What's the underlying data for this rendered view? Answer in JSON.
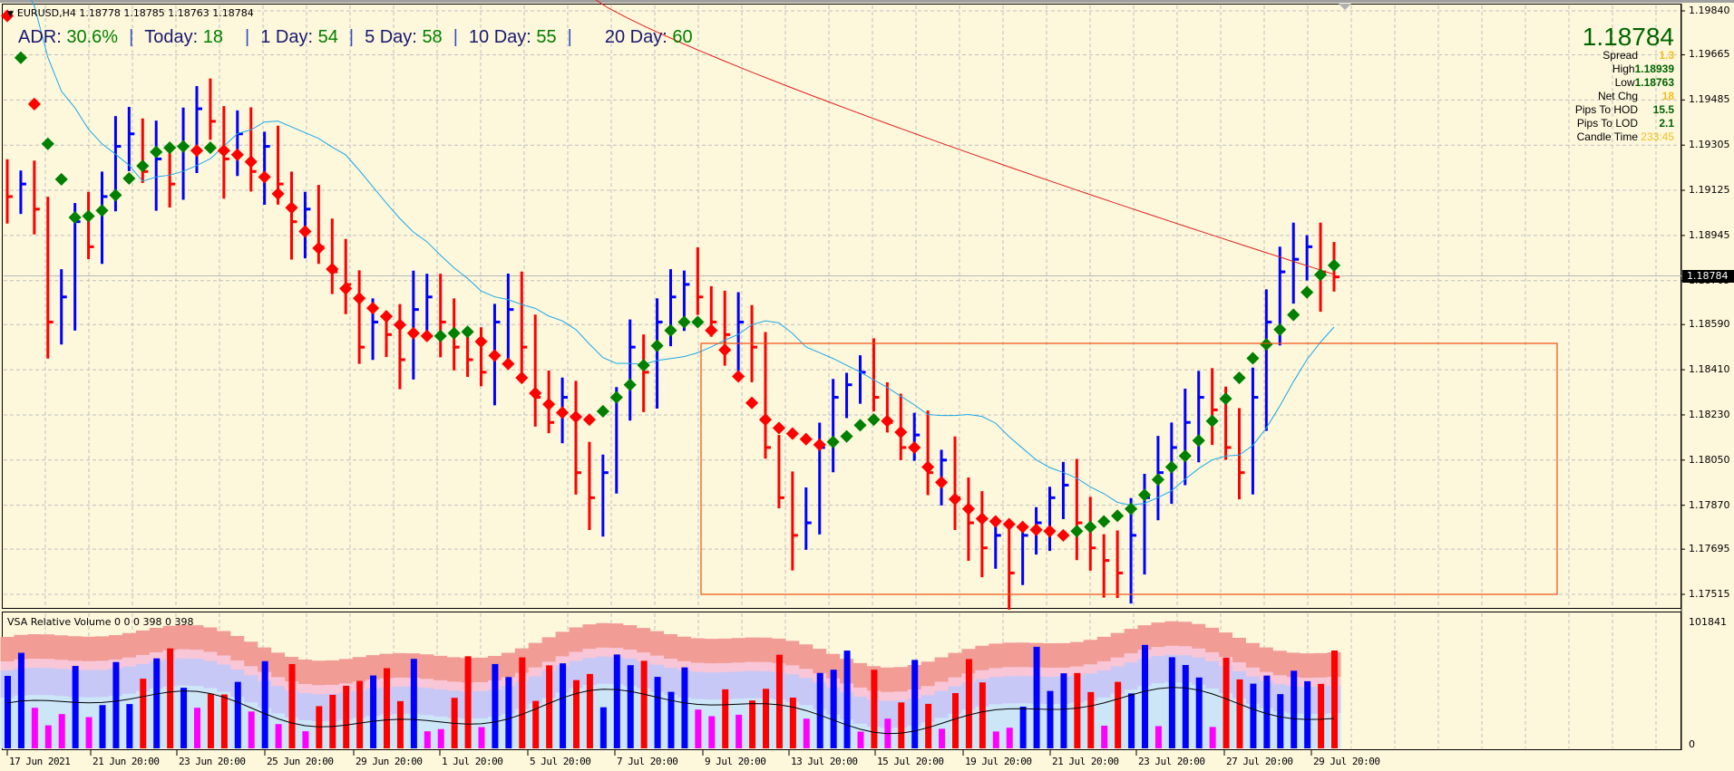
{
  "header": {
    "symbol_line": "EURUSD,H4  1.18778 1.18785 1.18763 1.18784"
  },
  "adr": {
    "adr_label": "ADR:",
    "adr_value": "30.6%",
    "today_label": "Today:",
    "today_value": "18",
    "day1_label": "1 Day:",
    "day1_value": "54",
    "day5_label": "5 Day:",
    "day5_value": "58",
    "day10_label": "10 Day:",
    "day10_value": "55",
    "day20_label": "20 Day:",
    "day20_value": "60",
    "separator": "|"
  },
  "info_panel": {
    "price": "1.18784",
    "spread_label": "Spread",
    "spread_value": "1.3",
    "high_label": "High",
    "high_value": "1.18939",
    "low_label": "Low",
    "low_value": "1.18763",
    "netchg_label": "Net Chg",
    "netchg_value": "18",
    "pips_hod_label": "Pips To HOD",
    "pips_hod_value": "15.5",
    "pips_lod_label": "Pips To LOD",
    "pips_lod_value": "2.1",
    "candle_time_label": "Candle Time",
    "candle_time_value": "233:45"
  },
  "price_axis": {
    "ticks": [
      "1.19840",
      "1.19665",
      "1.19485",
      "1.19305",
      "1.19125",
      "1.18945",
      "1.18765",
      "1.18590",
      "1.18410",
      "1.18230",
      "1.18050",
      "1.17870",
      "1.17695",
      "1.17515"
    ],
    "current_price": "1.18784"
  },
  "volume_pane": {
    "title": "VSA Relative Volume 0 0 0 398 0 398",
    "max_label": "101841",
    "min_label": "0"
  },
  "time_axis": {
    "labels": [
      "17 Jun 2021",
      "21 Jun 20:00",
      "23 Jun 20:00",
      "25 Jun 20:00",
      "29 Jun 20:00",
      "1 Jul 20:00",
      "5 Jul 20:00",
      "7 Jul 20:00",
      "9 Jul 20:00",
      "13 Jul 20:00",
      "15 Jul 20:00",
      "19 Jul 20:00",
      "21 Jul 20:00",
      "23 Jul 20:00",
      "27 Jul 20:00",
      "29 Jul 20:00"
    ]
  },
  "colors": {
    "background": "#fdf7dc",
    "bull_bar": "#0000ff",
    "bear_bar": "#ff0000",
    "trend_up": "#008000",
    "trend_down": "#ff0000",
    "ma_fast": "#1ca8e8",
    "ma_slow": "#e02020",
    "box": "#f05010",
    "grid": "#c0c0c0"
  },
  "chart_data": {
    "type": "ohlc",
    "title": "EURUSD,H4",
    "symbol": "EURUSD",
    "timeframe": "H4",
    "last_ohlc": {
      "open": 1.18778,
      "high": 1.18785,
      "low": 1.18763,
      "close": 1.18784
    },
    "ylim": [
      1.1745,
      1.199
    ],
    "y_ticks": [
      1.1984,
      1.19665,
      1.19485,
      1.19305,
      1.19125,
      1.18945,
      1.18765,
      1.1859,
      1.1841,
      1.1823,
      1.1805,
      1.1787,
      1.17695,
      1.17515
    ],
    "x_labels": [
      "17 Jun 2021",
      "21 Jun 20:00",
      "23 Jun 20:00",
      "25 Jun 20:00",
      "29 Jun 20:00",
      "1 Jul 20:00",
      "5 Jul 20:00",
      "7 Jul 20:00",
      "9 Jul 20:00",
      "13 Jul 20:00",
      "15 Jul 20:00",
      "19 Jul 20:00",
      "21 Jul 20:00",
      "23 Jul 20:00",
      "27 Jul 20:00",
      "29 Jul 20:00"
    ],
    "bars_close_approx": [
      1.191,
      1.1915,
      1.1905,
      1.186,
      1.187,
      1.19,
      1.189,
      1.191,
      1.193,
      1.1935,
      1.192,
      1.1925,
      1.1915,
      1.193,
      1.1945,
      1.194,
      1.1925,
      1.1935,
      1.192,
      1.193,
      1.1915,
      1.19,
      1.1905,
      1.189,
      1.188,
      1.1875,
      1.185,
      1.186,
      1.1855,
      1.1845,
      1.1865,
      1.187,
      1.186,
      1.185,
      1.1845,
      1.184,
      1.186,
      1.1865,
      1.185,
      1.183,
      1.182,
      1.183,
      1.18,
      1.179,
      1.18,
      1.183,
      1.185,
      1.184,
      1.186,
      1.187,
      1.1875,
      1.187,
      1.186,
      1.1855,
      1.186,
      1.185,
      1.181,
      1.179,
      1.1775,
      1.178,
      1.181,
      1.183,
      1.1835,
      1.184,
      1.183,
      1.182,
      1.181,
      1.1815,
      1.18,
      1.1805,
      1.179,
      1.178,
      1.177,
      1.1775,
      1.176,
      1.1775,
      1.178,
      1.179,
      1.1795,
      1.178,
      1.177,
      1.1765,
      1.176,
      1.1775,
      1.179,
      1.18,
      1.181,
      1.182,
      1.183,
      1.1825,
      1.181,
      1.18,
      1.183,
      1.186,
      1.188,
      1.1885,
      1.189,
      1.188,
      1.1878
    ],
    "overlays": [
      {
        "name": "Fast MA",
        "color": "#1ca8e8"
      },
      {
        "name": "Slow MA (200)",
        "color": "#e02020"
      },
      {
        "name": "Trend dots",
        "colors": [
          "#008000",
          "#ff0000"
        ]
      }
    ],
    "annotations": [
      {
        "type": "rectangle",
        "from_label": "9 Jul 20:00",
        "to_label": "after 29 Jul 20:00",
        "y_top": 1.185,
        "y_bottom": 1.1751,
        "color": "#f05010"
      }
    ],
    "volume": {
      "title": "VSA Relative Volume 0 0 0 398 0 398",
      "ymax": 101841,
      "ymin": 0
    }
  }
}
